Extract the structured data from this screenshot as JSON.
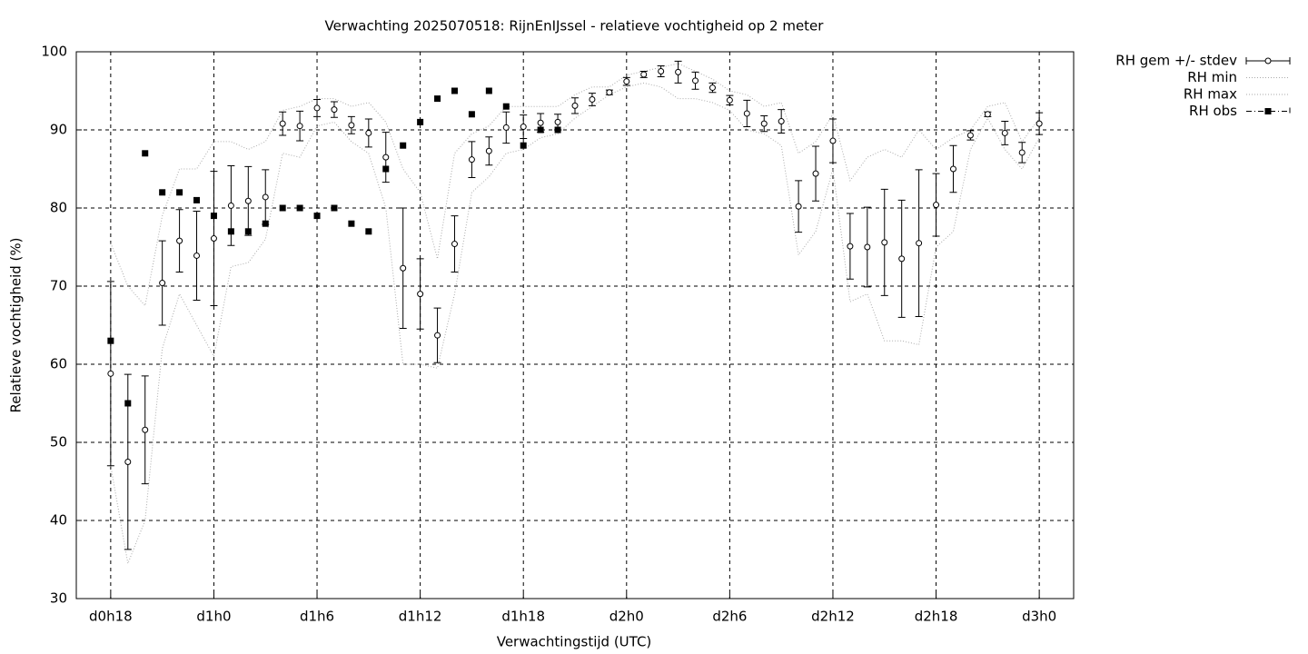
{
  "chart_data": {
    "type": "errorbar",
    "title": "Verwachting 2025070518: RijnEnIJssel - relatieve vochtigheid op 2 meter",
    "xlabel": "Verwachtingstijd (UTC)",
    "ylabel": "Relatieve vochtigheid (%)",
    "x": [
      18,
      19,
      20,
      21,
      22,
      23,
      24,
      25,
      26,
      27,
      28,
      29,
      30,
      31,
      32,
      33,
      34,
      35,
      36,
      37,
      38,
      39,
      40,
      41,
      42,
      43,
      44,
      45,
      46,
      47,
      48,
      49,
      50,
      51,
      52,
      53,
      54,
      55,
      56,
      57,
      58,
      59,
      60,
      61,
      62,
      63,
      64,
      65,
      66,
      67,
      68,
      69,
      70,
      71,
      72
    ],
    "xlim": [
      16,
      74
    ],
    "xticks": [
      {
        "value": 18,
        "label": "d0h18"
      },
      {
        "value": 24,
        "label": "d1h0"
      },
      {
        "value": 30,
        "label": "d1h6"
      },
      {
        "value": 36,
        "label": "d1h12"
      },
      {
        "value": 42,
        "label": "d1h18"
      },
      {
        "value": 48,
        "label": "d2h0"
      },
      {
        "value": 54,
        "label": "d2h6"
      },
      {
        "value": 60,
        "label": "d2h12"
      },
      {
        "value": 66,
        "label": "d2h18"
      },
      {
        "value": 72,
        "label": "d3h0"
      }
    ],
    "ylim": [
      30,
      100
    ],
    "yticks": [
      30,
      40,
      50,
      60,
      70,
      80,
      90,
      100
    ],
    "grid": true,
    "legend": "outside-top-right",
    "series": [
      {
        "name": "RH gem +/- stdev",
        "color": "#000000",
        "values": [
          58.8,
          47.5,
          51.6,
          70.4,
          75.8,
          73.9,
          76.1,
          80.3,
          80.9,
          81.4,
          90.8,
          90.5,
          92.8,
          92.6,
          90.6,
          89.6,
          86.5,
          72.3,
          69.0,
          63.7,
          75.4,
          86.2,
          87.3,
          90.3,
          90.4,
          90.9,
          91.0,
          93.1,
          93.9,
          94.8,
          96.2,
          97.1,
          97.5,
          97.4,
          96.3,
          95.4,
          93.8,
          92.1,
          90.8,
          91.1,
          80.2,
          84.4,
          88.6,
          75.1,
          75.0,
          75.6,
          73.5,
          75.5,
          80.4,
          85.0,
          89.3,
          92.0,
          89.6,
          87.1,
          90.8
        ],
        "errors": [
          11.8,
          11.2,
          6.9,
          5.4,
          4.0,
          5.7,
          8.6,
          5.1,
          4.4,
          3.5,
          1.5,
          1.9,
          1.1,
          1.0,
          1.1,
          1.8,
          3.2,
          7.7,
          4.5,
          3.5,
          3.6,
          2.3,
          1.8,
          2.0,
          1.5,
          1.2,
          1.0,
          1.0,
          0.8,
          0.3,
          0.5,
          0.4,
          0.7,
          1.4,
          1.1,
          0.6,
          0.6,
          1.7,
          1.0,
          1.5,
          3.3,
          3.5,
          2.8,
          4.2,
          5.1,
          6.8,
          7.5,
          9.4,
          4.0,
          3.0,
          0.6,
          0.3,
          1.5,
          1.3,
          1.4
        ]
      },
      {
        "name": "RH min",
        "color": "#aaaaaa",
        "values": [
          47,
          34.5,
          40,
          62,
          69,
          65,
          61,
          72.5,
          73,
          76,
          87,
          86.5,
          90.5,
          91,
          88.5,
          87,
          80,
          60,
          60,
          59.5,
          69,
          82,
          84,
          87,
          87.5,
          89,
          89.5,
          91.5,
          93,
          94.5,
          95.5,
          96,
          95.5,
          94,
          94,
          93.5,
          92.5,
          90,
          89.5,
          88,
          74,
          77,
          85,
          68,
          69,
          63,
          63,
          62.5,
          75,
          77,
          87.5,
          91.5,
          87.5,
          85,
          89
        ]
      },
      {
        "name": "RH max",
        "color": "#aaaaaa",
        "values": [
          75.5,
          70,
          67.5,
          79,
          85,
          85,
          88.5,
          88.5,
          87.5,
          88.5,
          92.5,
          93,
          94,
          94,
          93,
          93.5,
          91,
          85,
          82,
          73.5,
          87,
          89.5,
          90.5,
          93,
          93,
          93,
          93,
          94.5,
          95.5,
          95.5,
          97,
          97.5,
          98,
          98.5,
          97.5,
          96.5,
          95,
          94.5,
          93,
          93.5,
          87,
          88.5,
          92,
          83.5,
          86.5,
          87.5,
          86.5,
          90,
          87.5,
          89,
          90,
          93,
          93.5,
          88.5,
          91.5
        ]
      },
      {
        "name": "RH obs",
        "color": "#000000",
        "values": [
          63,
          55,
          87,
          82,
          82,
          81,
          79,
          77,
          77,
          78,
          80,
          80,
          79,
          80,
          78,
          77,
          85,
          88,
          91,
          94,
          95,
          92,
          95,
          93,
          88,
          90,
          90,
          null,
          null,
          null,
          null,
          null,
          null,
          null,
          null,
          null,
          null,
          null,
          null,
          null,
          null,
          null,
          null,
          null,
          null,
          null,
          null,
          null,
          null,
          null,
          null,
          null,
          null,
          null,
          null
        ]
      }
    ]
  }
}
